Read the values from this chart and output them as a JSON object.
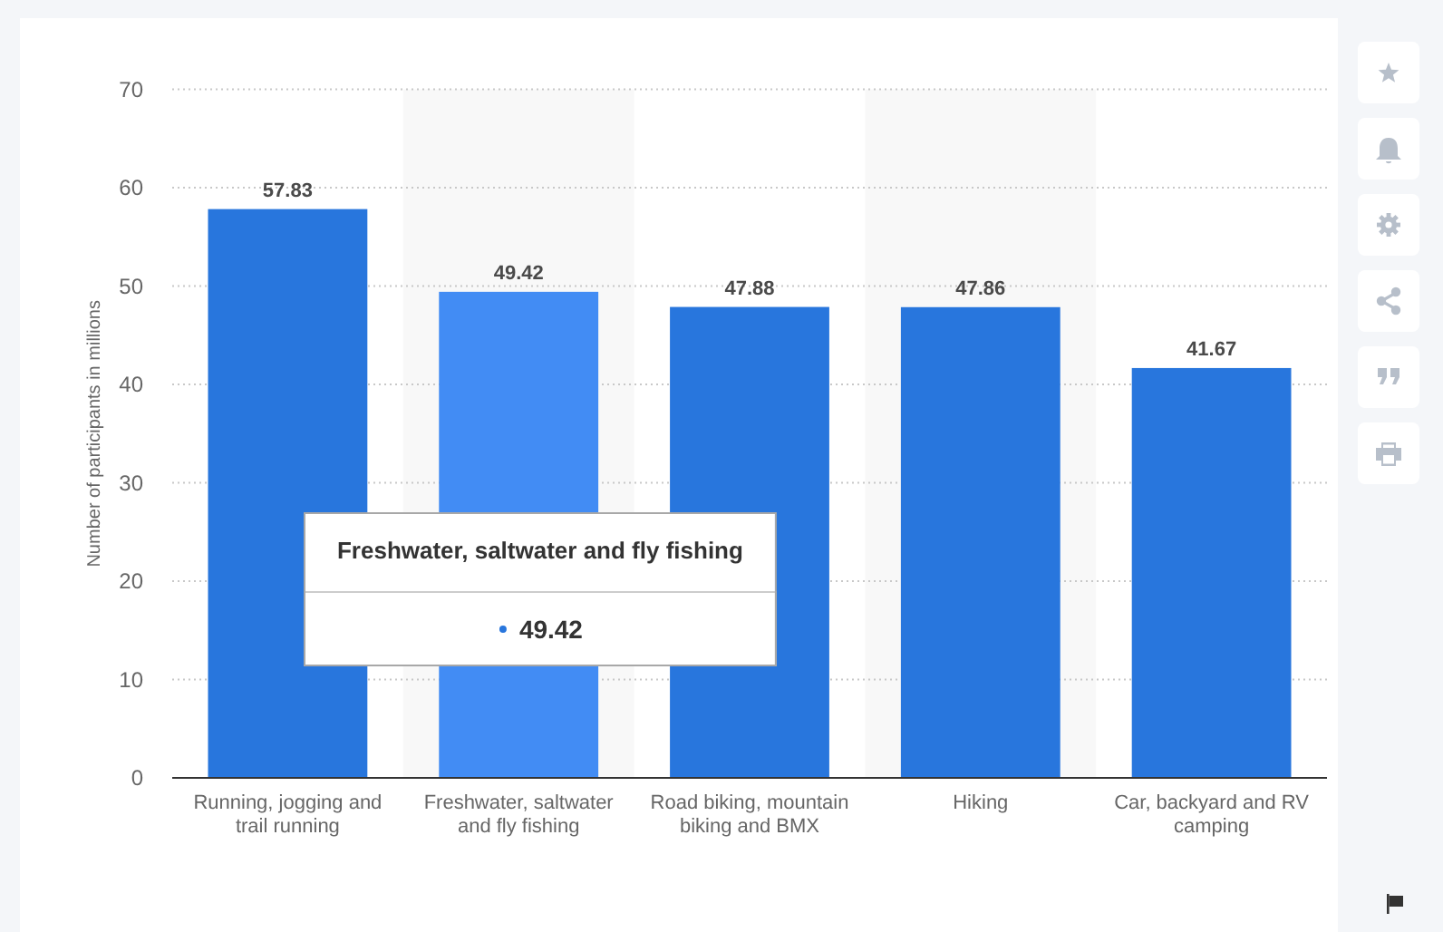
{
  "chart_data": {
    "type": "bar",
    "ylabel": "Number of participants in millions",
    "categories": [
      "Running, jogging and trail running",
      "Freshwater, saltwater and fly fishing",
      "Road biking, mountain biking and BMX",
      "Hiking",
      "Car, backyard and RV camping"
    ],
    "values": [
      57.83,
      49.42,
      47.88,
      47.86,
      41.67
    ],
    "colors": [
      "#2876dd",
      "#428cf4",
      "#2876dd",
      "#2876dd",
      "#2876dd"
    ],
    "ylim": [
      0,
      70
    ],
    "yticks": [
      0,
      10,
      20,
      30,
      40,
      50,
      60,
      70
    ],
    "grid": "y",
    "data_labels": true,
    "bands": [
      {
        "axis": "x",
        "from": "Freshwater, saltwater and fly fishing",
        "to": "Freshwater, saltwater and fly fishing",
        "color": "#f8f8f8"
      },
      {
        "axis": "x",
        "from": "Hiking",
        "to": "Hiking",
        "color": "#f8f8f8"
      }
    ],
    "annotations": [
      "Freshwater, saltwater and fly fishing",
      "49.42"
    ]
  }
}
